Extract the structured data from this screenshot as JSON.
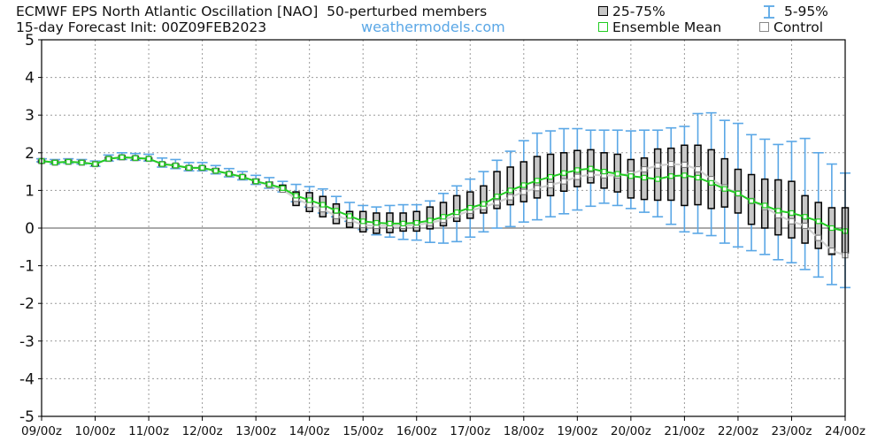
{
  "header": {
    "title": "ECMWF EPS North Atlantic Oscillation [NAO]",
    "members": "50-perturbed members",
    "subtitle": "15-day Forecast Init: 00Z09FEB2023",
    "site": "weathermodels.com",
    "legend_box": "25-75%",
    "legend_whisker": "5-95%",
    "legend_mean": "Ensemble Mean",
    "legend_control": "Control"
  },
  "colors": {
    "box_fill": "#c8c8c8",
    "whisker": "#5aa7e6",
    "mean": "#22cc22",
    "control": "#ffffff",
    "site": "#5aa7e6"
  },
  "chart_data": {
    "type": "box",
    "title": "ECMWF EPS North Atlantic Oscillation [NAO]",
    "ylim": [
      -5,
      5
    ],
    "yticks": [
      5,
      4,
      3,
      2,
      1,
      0,
      -1,
      -2,
      -3,
      -4,
      -5
    ],
    "xticks": [
      "09/00z",
      "10/00z",
      "11/00z",
      "12/00z",
      "13/00z",
      "14/00z",
      "15/00z",
      "16/00z",
      "17/00z",
      "18/00z",
      "19/00z",
      "20/00z",
      "21/00z",
      "22/00z",
      "23/00z",
      "24/00z"
    ],
    "time_step_hours": 6,
    "steps": 61,
    "p05": [
      1.76,
      1.7,
      1.72,
      1.7,
      1.64,
      1.78,
      1.82,
      1.8,
      1.78,
      1.62,
      1.58,
      1.52,
      1.52,
      1.44,
      1.36,
      1.28,
      1.16,
      1.06,
      0.96,
      0.7,
      0.56,
      0.4,
      0.3,
      0.18,
      -0.04,
      -0.18,
      -0.24,
      -0.3,
      -0.32,
      -0.38,
      -0.4,
      -0.36,
      -0.24,
      -0.1,
      0.0,
      0.04,
      0.16,
      0.22,
      0.3,
      0.38,
      0.48,
      0.58,
      0.66,
      0.6,
      0.52,
      0.42,
      0.3,
      0.1,
      -0.1,
      -0.14,
      -0.2,
      -0.4,
      -0.5,
      -0.6,
      -0.7,
      -0.84,
      -0.92,
      -1.1,
      -1.3,
      -1.5,
      -1.58
    ],
    "p25": [
      1.74,
      1.72,
      1.74,
      1.72,
      1.66,
      1.8,
      1.84,
      1.82,
      1.8,
      1.66,
      1.62,
      1.56,
      1.56,
      1.5,
      1.4,
      1.32,
      1.2,
      1.12,
      1.0,
      0.6,
      0.44,
      0.3,
      0.12,
      0.02,
      -0.1,
      -0.14,
      -0.12,
      -0.08,
      -0.08,
      -0.02,
      0.06,
      0.18,
      0.26,
      0.4,
      0.52,
      0.62,
      0.7,
      0.8,
      0.86,
      0.98,
      1.1,
      1.2,
      1.06,
      0.96,
      0.8,
      0.76,
      0.74,
      0.74,
      0.6,
      0.62,
      0.52,
      0.56,
      0.4,
      0.1,
      0.0,
      -0.18,
      -0.26,
      -0.4,
      -0.54,
      -0.7,
      -0.66
    ],
    "p75": [
      1.8,
      1.78,
      1.8,
      1.78,
      1.72,
      1.88,
      1.92,
      1.9,
      1.86,
      1.74,
      1.7,
      1.64,
      1.64,
      1.58,
      1.48,
      1.4,
      1.3,
      1.22,
      1.14,
      0.96,
      0.94,
      0.84,
      0.64,
      0.44,
      0.44,
      0.4,
      0.4,
      0.4,
      0.44,
      0.56,
      0.68,
      0.86,
      0.96,
      1.12,
      1.5,
      1.62,
      1.76,
      1.9,
      1.96,
      2.0,
      2.06,
      2.08,
      2.0,
      1.96,
      1.82,
      1.86,
      2.1,
      2.12,
      2.2,
      2.2,
      2.08,
      1.84,
      1.56,
      1.42,
      1.3,
      1.28,
      1.24,
      0.86,
      0.68,
      0.54,
      0.54
    ],
    "p95": [
      1.84,
      1.82,
      1.84,
      1.82,
      1.78,
      1.94,
      2.0,
      1.98,
      1.96,
      1.86,
      1.82,
      1.74,
      1.74,
      1.66,
      1.58,
      1.5,
      1.4,
      1.34,
      1.24,
      1.16,
      1.1,
      1.04,
      0.84,
      0.68,
      0.6,
      0.56,
      0.6,
      0.62,
      0.62,
      0.72,
      0.92,
      1.12,
      1.3,
      1.5,
      1.8,
      2.04,
      2.32,
      2.52,
      2.58,
      2.64,
      2.64,
      2.6,
      2.6,
      2.6,
      2.58,
      2.6,
      2.6,
      2.66,
      2.7,
      3.04,
      3.06,
      2.86,
      2.78,
      2.48,
      2.36,
      2.22,
      2.3,
      2.38,
      2.0,
      1.7,
      1.46
    ],
    "mean": [
      1.78,
      1.74,
      1.76,
      1.74,
      1.7,
      1.84,
      1.88,
      1.86,
      1.84,
      1.7,
      1.66,
      1.6,
      1.6,
      1.52,
      1.44,
      1.36,
      1.24,
      1.16,
      1.06,
      0.86,
      0.74,
      0.62,
      0.46,
      0.32,
      0.18,
      0.14,
      0.12,
      0.12,
      0.14,
      0.2,
      0.3,
      0.42,
      0.54,
      0.64,
      0.84,
      1.0,
      1.14,
      1.26,
      1.36,
      1.46,
      1.54,
      1.58,
      1.5,
      1.44,
      1.38,
      1.34,
      1.3,
      1.38,
      1.4,
      1.34,
      1.2,
      1.04,
      0.92,
      0.72,
      0.6,
      0.46,
      0.4,
      0.3,
      0.18,
      0.0,
      -0.08
    ],
    "control": [
      1.78,
      1.74,
      1.76,
      1.74,
      1.7,
      1.84,
      1.88,
      1.86,
      1.84,
      1.7,
      1.66,
      1.6,
      1.6,
      1.52,
      1.44,
      1.36,
      1.24,
      1.14,
      1.02,
      0.78,
      0.62,
      0.5,
      0.32,
      0.22,
      0.08,
      0.06,
      0.06,
      0.06,
      0.08,
      0.14,
      0.22,
      0.34,
      0.46,
      0.56,
      0.68,
      0.82,
      0.96,
      1.06,
      1.14,
      1.24,
      1.36,
      1.42,
      1.4,
      1.4,
      1.44,
      1.56,
      1.66,
      1.7,
      1.68,
      1.56,
      1.3,
      1.08,
      0.92,
      0.72,
      0.56,
      0.34,
      0.18,
      0.06,
      -0.26,
      -0.6,
      -0.72
    ]
  }
}
